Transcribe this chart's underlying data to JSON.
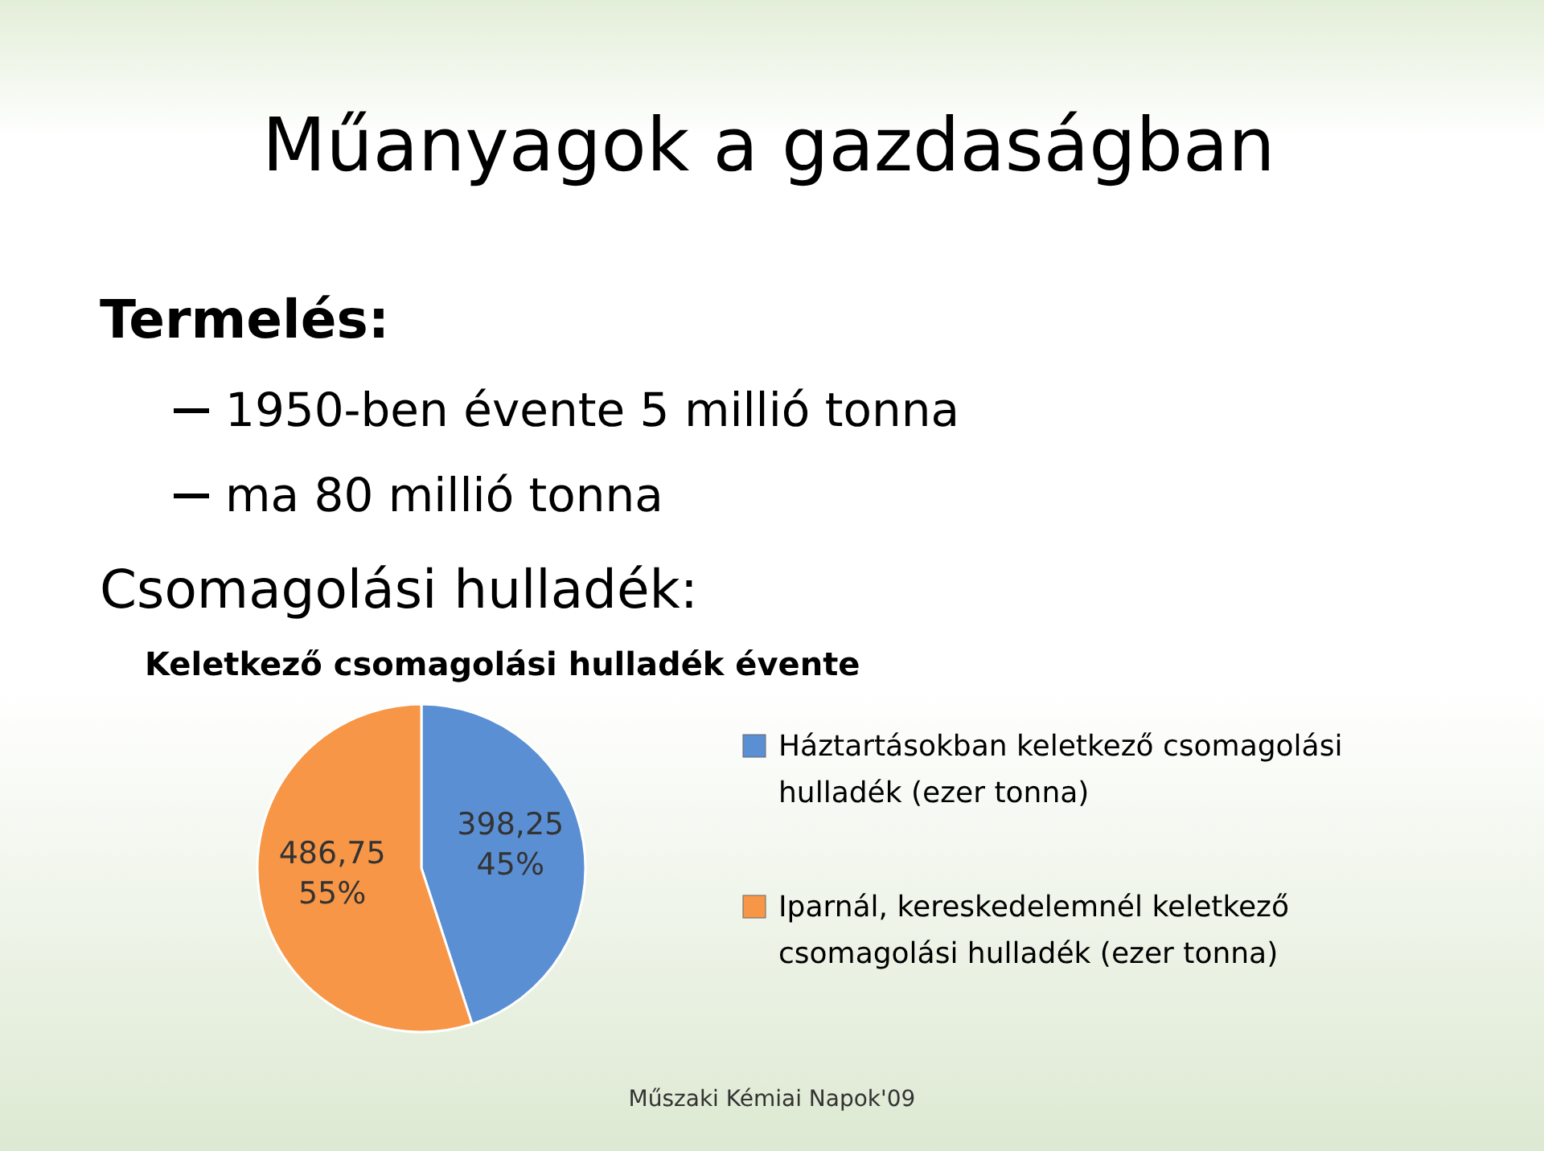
{
  "chart_data": {
    "type": "pie",
    "title": "Műanyagok a gazdaságban",
    "subtitle": "Keletkező csomagolási hulladék évente",
    "annotations": [
      "Termelés:",
      "1950-ben évente 5 millió tonna",
      "ma 80 millió tonna",
      "Csomagolási hulladék:",
      "Műszaki Kémiai Napok'09"
    ],
    "categories": [
      "Háztartásokban keletkező csomagolási hulladék (ezer tonna)",
      "Iparnál, kereskedelemnél keletkező csomagolási hulladék (ezer tonna)"
    ],
    "values": [
      398.25,
      486.75
    ],
    "colors": [
      "#5b8fd4",
      "#f79646"
    ],
    "value_labels": [
      "398,25 45%",
      "486,75 55%"
    ],
    "legend": "right"
  }
}
